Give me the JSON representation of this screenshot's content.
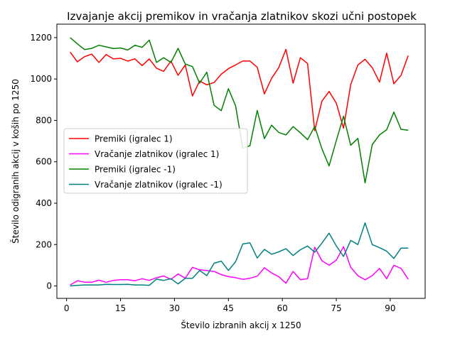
{
  "chart_data": {
    "type": "line",
    "title": "Izvajanje akcij premikov in vračanja zlatnikov skozi učni postopek",
    "xlabel": "Število izbranih akcij x 1250",
    "ylabel": "Število odigranih akcij v koših po 1250",
    "xlim": [
      -2.7,
      99.7
    ],
    "ylim": [
      -60,
      1265
    ],
    "xticks": [
      0,
      15,
      30,
      45,
      60,
      75,
      90
    ],
    "yticks": [
      0,
      200,
      400,
      600,
      800,
      1000,
      1200
    ],
    "grid": false,
    "legend_position": "center-left",
    "x": [
      1,
      3,
      5,
      7,
      9,
      11,
      13,
      15,
      17,
      19,
      21,
      23,
      25,
      27,
      29,
      31,
      33,
      35,
      37,
      39,
      41,
      43,
      45,
      47,
      49,
      51,
      53,
      55,
      57,
      59,
      61,
      63,
      65,
      67,
      69,
      71,
      73,
      75,
      77,
      79,
      81,
      83,
      85,
      87,
      89,
      91,
      93,
      95
    ],
    "series": [
      {
        "name": "Premiki (igralec 1)",
        "color": "#ff0000",
        "values": [
          1130,
          1083,
          1108,
          1120,
          1080,
          1118,
          1097,
          1100,
          1087,
          1097,
          1065,
          1097,
          1052,
          1037,
          1087,
          1018,
          1068,
          918,
          990,
          972,
          983,
          1023,
          1050,
          1068,
          1087,
          1087,
          1057,
          928,
          1003,
          1055,
          1143,
          980,
          1103,
          1075,
          750,
          893,
          940,
          883,
          762,
          973,
          1068,
          1095,
          1055,
          985,
          1125,
          977,
          1018,
          1113
        ]
      },
      {
        "name": "Vračanje zlatnikov (igralec 1)",
        "color": "#ff00ff",
        "values": [
          5,
          25,
          18,
          18,
          28,
          18,
          27,
          30,
          30,
          25,
          35,
          27,
          40,
          48,
          32,
          58,
          37,
          90,
          78,
          75,
          70,
          55,
          45,
          40,
          32,
          37,
          47,
          88,
          63,
          45,
          13,
          70,
          30,
          35,
          187,
          122,
          100,
          125,
          190,
          90,
          50,
          30,
          50,
          85,
          35,
          100,
          85,
          33
        ]
      },
      {
        "name": "Premiki (igralec -1)",
        "color": "#008000",
        "values": [
          1200,
          1170,
          1142,
          1148,
          1163,
          1155,
          1147,
          1150,
          1140,
          1163,
          1153,
          1188,
          1080,
          1103,
          1080,
          1148,
          1072,
          1060,
          980,
          1033,
          873,
          847,
          953,
          870,
          665,
          678,
          848,
          712,
          777,
          742,
          730,
          770,
          740,
          707,
          770,
          663,
          580,
          703,
          820,
          680,
          713,
          498,
          683,
          730,
          755,
          840,
          757,
          752
        ]
      },
      {
        "name": "Vračanje zlatnikov (igralec -1)",
        "color": "#008080",
        "values": [
          0,
          3,
          5,
          5,
          5,
          8,
          7,
          7,
          8,
          5,
          5,
          3,
          33,
          27,
          35,
          10,
          37,
          37,
          75,
          50,
          110,
          120,
          75,
          117,
          203,
          208,
          135,
          177,
          153,
          165,
          180,
          147,
          175,
          193,
          163,
          207,
          255,
          193,
          143,
          220,
          200,
          305,
          200,
          185,
          168,
          133,
          183,
          183
        ]
      }
    ]
  }
}
